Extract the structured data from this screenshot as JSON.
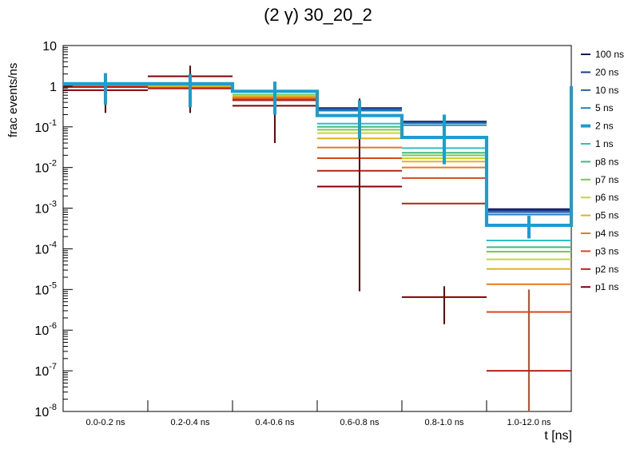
{
  "chart_data": {
    "type": "step-histogram",
    "title": "(2 γ) 30_20_2",
    "xlabel": "t [ns]",
    "ylabel": "frac events/ns",
    "yscale": "log",
    "ylim": [
      1e-08,
      10
    ],
    "categories": [
      "0.0-0.2 ns",
      "0.2-0.4 ns",
      "0.4-0.6 ns",
      "0.6-0.8 ns",
      "0.8-1.0 ns",
      "1.0-12.0 ns"
    ],
    "ytick_labels": [
      {
        "base": "10",
        "exp": "-8",
        "value": 1e-08
      },
      {
        "base": "10",
        "exp": "-7",
        "value": 1e-07
      },
      {
        "base": "10",
        "exp": "-6",
        "value": 1e-06
      },
      {
        "base": "10",
        "exp": "-5",
        "value": 1e-05
      },
      {
        "base": "10",
        "exp": "-4",
        "value": 0.0001
      },
      {
        "base": "10",
        "exp": "-3",
        "value": 0.001
      },
      {
        "base": "10",
        "exp": "-2",
        "value": 0.01
      },
      {
        "base": "10",
        "exp": "-1",
        "value": 0.1
      },
      {
        "base": "1",
        "exp": "",
        "value": 1
      },
      {
        "base": "10",
        "exp": "",
        "value": 10
      }
    ],
    "legend_position": "right",
    "series": [
      {
        "name": "100 ns",
        "color": "#081d58",
        "width": 2,
        "values": [
          1.05,
          1.0,
          0.62,
          0.29,
          0.135,
          0.00095
        ]
      },
      {
        "name": "20 ns",
        "color": "#1f3b8c",
        "width": 2,
        "values": [
          1.05,
          1.0,
          0.62,
          0.28,
          0.13,
          0.00088
        ]
      },
      {
        "name": "10 ns",
        "color": "#225ea8",
        "width": 2,
        "values": [
          1.05,
          1.0,
          0.62,
          0.27,
          0.125,
          0.0008
        ]
      },
      {
        "name": "5 ns",
        "color": "#1d7fc0",
        "width": 2,
        "values": [
          1.05,
          1.0,
          0.62,
          0.25,
          0.11,
          0.0007
        ]
      },
      {
        "name": "2 ns",
        "color": "#1b9dd0",
        "width": 4,
        "values": [
          1.15,
          1.15,
          0.75,
          0.19,
          0.055,
          0.00038
        ],
        "errors_low": [
          0.35,
          0.3,
          0.2,
          0.05,
          0.012,
          0.00018
        ],
        "errors_high": [
          2.1,
          2.0,
          1.3,
          0.45,
          0.2,
          0.00065
        ]
      },
      {
        "name": "1 ns",
        "color": "#2fbfc4",
        "width": 2,
        "values": [
          1.05,
          1.0,
          0.62,
          0.12,
          0.03,
          0.00016
        ]
      },
      {
        "name": "p8 ns",
        "color": "#41b883",
        "width": 2,
        "values": [
          1.05,
          1.0,
          0.62,
          0.1,
          0.023,
          0.00011
        ]
      },
      {
        "name": "p7 ns",
        "color": "#7fc850",
        "width": 2,
        "values": [
          1.05,
          1.0,
          0.6,
          0.085,
          0.02,
          8.5e-05
        ]
      },
      {
        "name": "p6 ns",
        "color": "#c8d633",
        "width": 2,
        "values": [
          1.0,
          0.98,
          0.58,
          0.07,
          0.017,
          5.5e-05
        ]
      },
      {
        "name": "p5 ns",
        "color": "#e0b21f",
        "width": 2,
        "values": [
          1.0,
          0.95,
          0.56,
          0.052,
          0.014,
          3.2e-05
        ]
      },
      {
        "name": "p4 ns",
        "color": "#e57a1f",
        "width": 2,
        "values": [
          1.0,
          0.92,
          0.52,
          0.031,
          0.01,
          1.35e-05
        ]
      },
      {
        "name": "p3 ns",
        "color": "#d7471d",
        "width": 2,
        "values": [
          0.98,
          0.9,
          0.48,
          0.017,
          0.0055,
          2.8e-06
        ],
        "errors_low": [
          null,
          null,
          null,
          null,
          null,
          1e-08
        ],
        "errors_high": [
          null,
          null,
          null,
          null,
          null,
          1e-05
        ]
      },
      {
        "name": "p2 ns",
        "color": "#b2221b",
        "width": 2,
        "values": [
          0.95,
          0.88,
          0.45,
          0.0083,
          0.0013,
          1e-07
        ]
      },
      {
        "name": "p1 ns",
        "color": "#800000",
        "width": 2,
        "values": [
          0.8,
          1.75,
          0.33,
          0.0034,
          6.5e-06,
          null
        ],
        "errors_low": [
          0.22,
          0.22,
          0.04,
          9e-06,
          1.4e-06,
          null
        ],
        "errors_high": [
          1.85,
          3.2,
          0.8,
          0.5,
          1.2e-05,
          null
        ]
      }
    ]
  }
}
